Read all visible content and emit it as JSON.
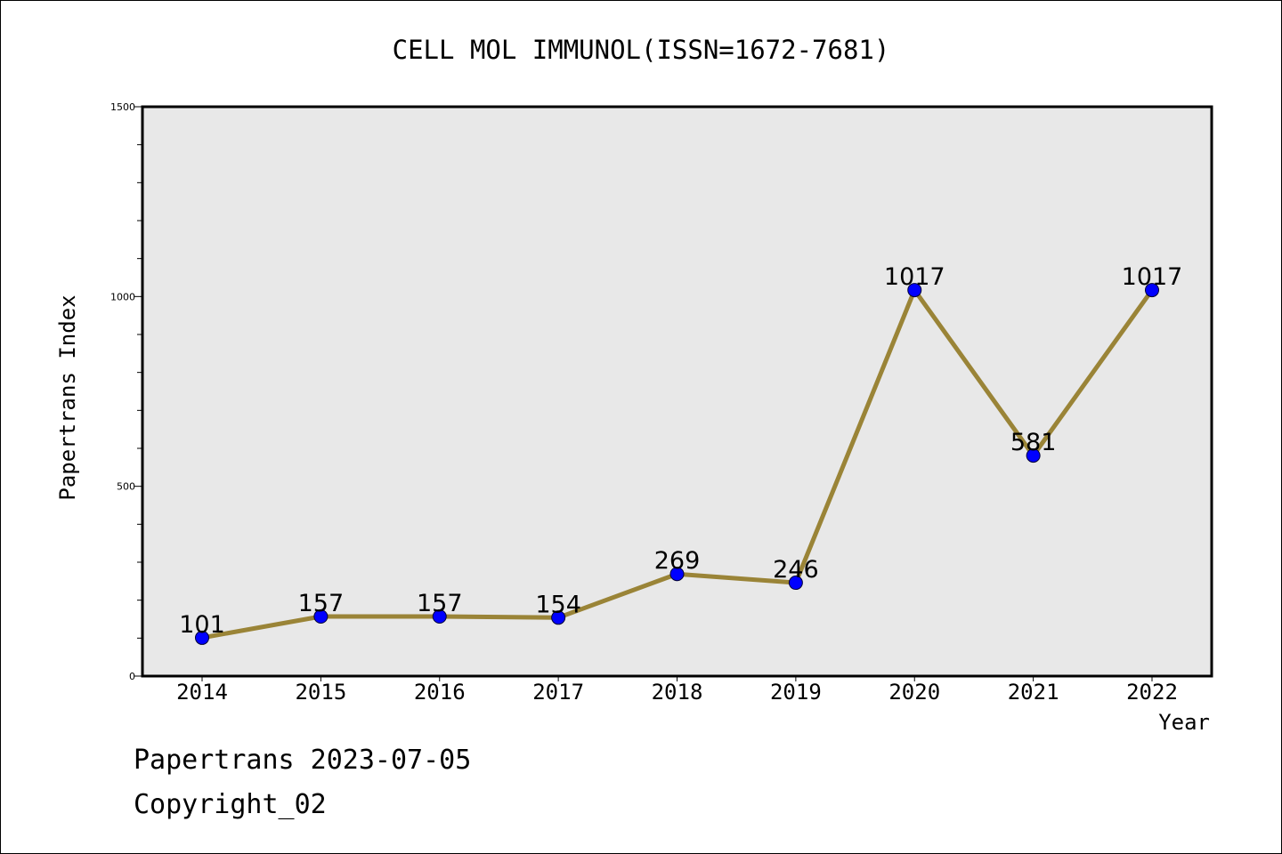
{
  "footer": {
    "line1": "Papertrans 2023-07-05",
    "line2": "Copyright_02"
  },
  "chart_data": {
    "type": "line",
    "title": "CELL MOL IMMUNOL(ISSN=1672-7681)",
    "xlabel": "Year",
    "ylabel": "Papertrans Index",
    "categories": [
      "2014",
      "2015",
      "2016",
      "2017",
      "2018",
      "2019",
      "2020",
      "2021",
      "2022"
    ],
    "series": [
      {
        "values": [
          101,
          157,
          157,
          154,
          269,
          246,
          1017,
          581,
          1017
        ],
        "data_labels": [
          "101",
          "157",
          "157",
          "154",
          "269",
          "246",
          "1017",
          "581",
          "1017"
        ]
      }
    ],
    "ylim": [
      0,
      1500
    ],
    "yticks_labeled": [
      "0",
      "500",
      "1000",
      "1500"
    ],
    "grid": false,
    "legend": "none",
    "colors": {
      "line": "#9a8437",
      "marker": "#0000ff",
      "plot_background": "#e8e8e8"
    }
  }
}
